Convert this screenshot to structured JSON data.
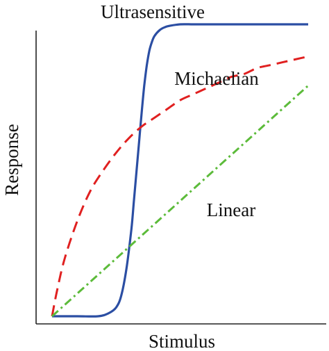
{
  "chart_data": {
    "type": "line",
    "title": "",
    "xlabel": "Stimulus",
    "ylabel": "Response",
    "xlim": [
      0,
      1
    ],
    "ylim": [
      0,
      1
    ],
    "grid": false,
    "legend": "none",
    "series": [
      {
        "name": "Ultrasensitive",
        "color": "#2b4ea3",
        "style": "solid",
        "x": [
          0.0,
          0.1,
          0.18,
          0.22,
          0.25,
          0.27,
          0.29,
          0.31,
          0.32,
          0.33,
          0.34,
          0.35,
          0.36,
          0.37,
          0.38,
          0.39,
          0.4,
          0.42,
          0.44,
          0.46,
          0.5,
          0.55,
          0.6,
          0.7,
          0.8,
          1.0
        ],
        "y": [
          0.0,
          0.0,
          0.0,
          0.01,
          0.03,
          0.07,
          0.16,
          0.3,
          0.4,
          0.5,
          0.6,
          0.7,
          0.79,
          0.86,
          0.91,
          0.94,
          0.96,
          0.98,
          0.99,
          0.995,
          1.0,
          1.0,
          1.0,
          1.0,
          1.0,
          1.0
        ]
      },
      {
        "name": "Michaelian",
        "color": "#e02020",
        "style": "dashed",
        "x": [
          0.0,
          0.02,
          0.05,
          0.1,
          0.15,
          0.2,
          0.25,
          0.3,
          0.35,
          0.4,
          0.45,
          0.5,
          0.55,
          0.6,
          0.65,
          0.7,
          0.75,
          0.8,
          0.85,
          0.9,
          0.95,
          1.0
        ],
        "y": [
          0.0,
          0.09,
          0.2,
          0.33,
          0.43,
          0.5,
          0.56,
          0.61,
          0.65,
          0.68,
          0.71,
          0.74,
          0.76,
          0.78,
          0.8,
          0.82,
          0.83,
          0.85,
          0.86,
          0.87,
          0.88,
          0.89
        ]
      },
      {
        "name": "Linear",
        "color": "#5cbb3a",
        "style": "dash-dot",
        "x": [
          0.0,
          1.0
        ],
        "y": [
          0.0,
          0.79
        ]
      }
    ],
    "annotations": [
      "Ultrasensitive",
      "Michaelian",
      "Linear"
    ]
  }
}
